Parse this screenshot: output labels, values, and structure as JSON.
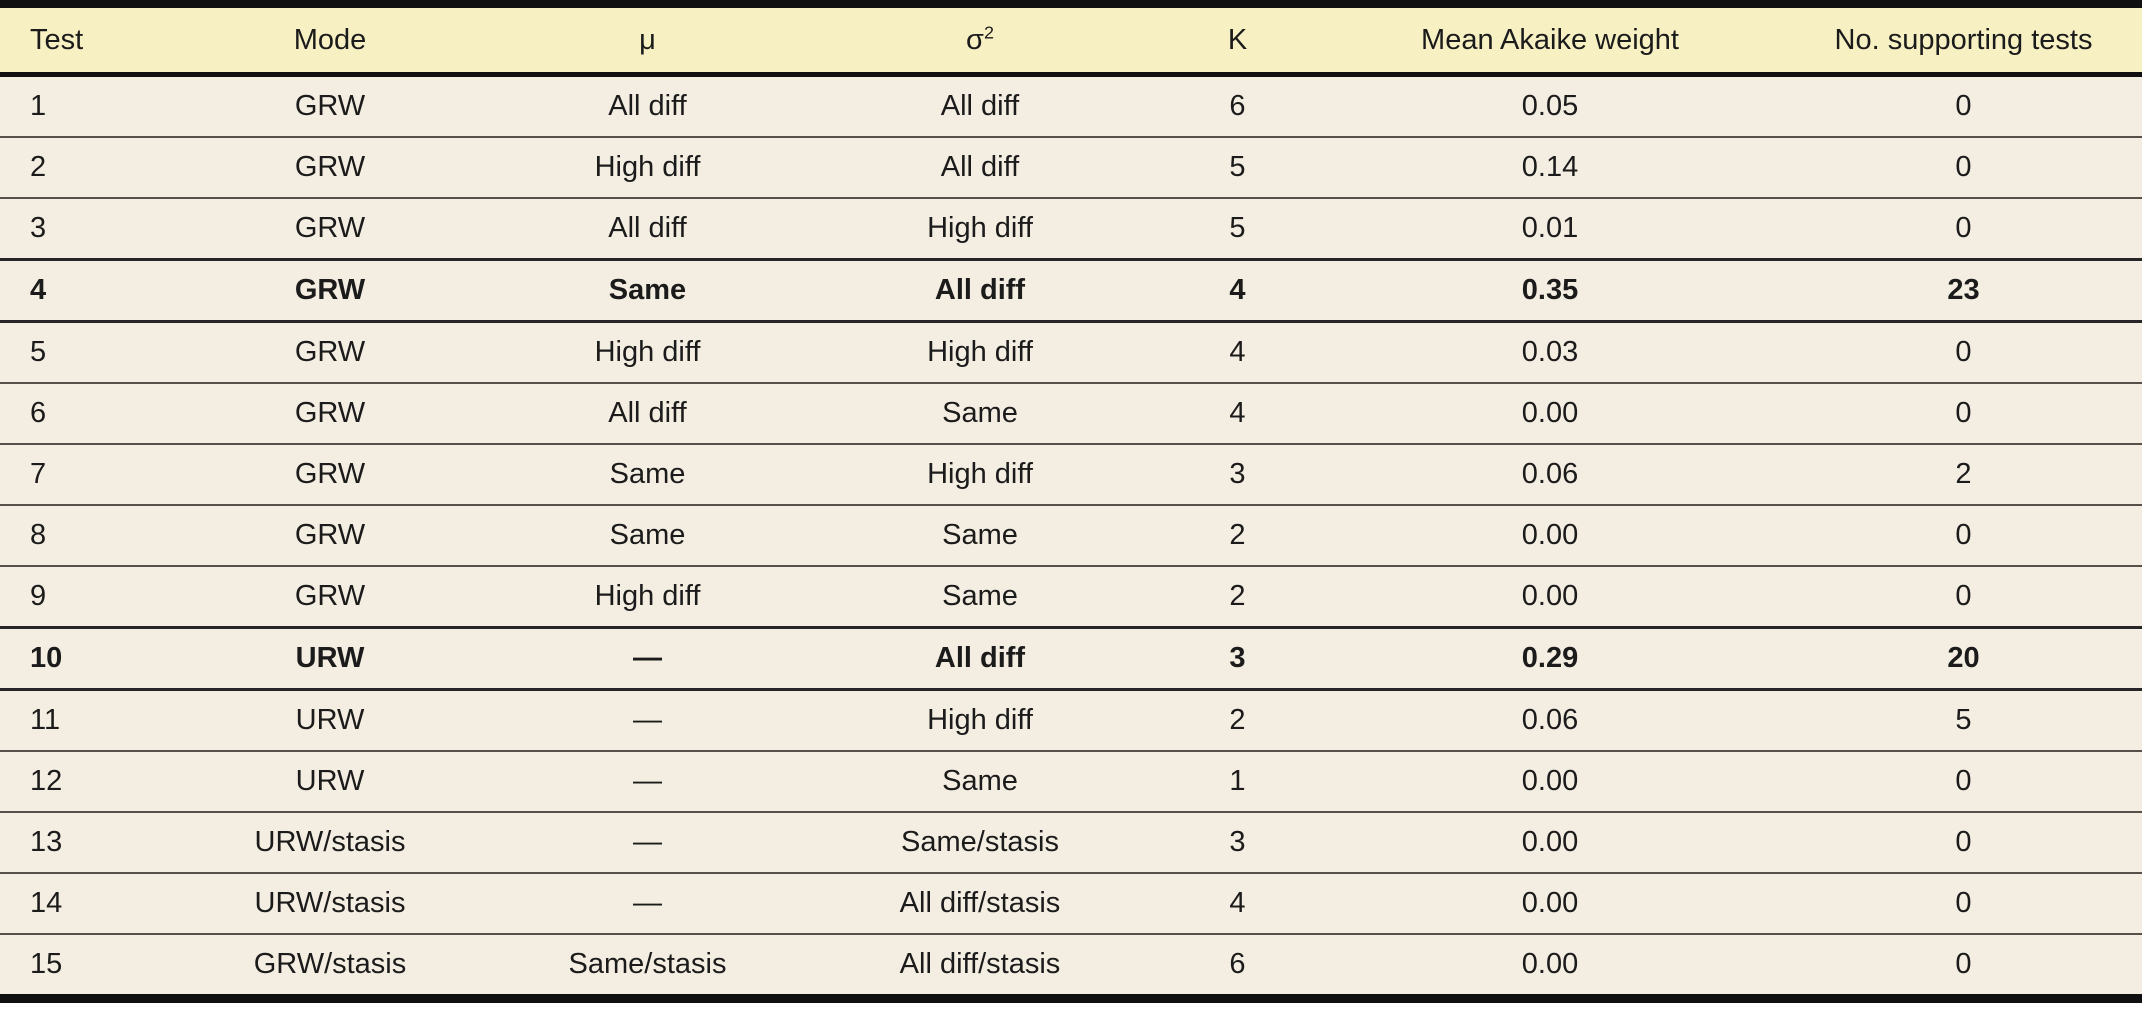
{
  "table": {
    "columns": [
      {
        "label": "Test",
        "sup": ""
      },
      {
        "label": "Mode",
        "sup": ""
      },
      {
        "label": "μ",
        "sup": ""
      },
      {
        "label": "σ",
        "sup": "2"
      },
      {
        "label": "K",
        "sup": ""
      },
      {
        "label": "Mean Akaike weight",
        "sup": ""
      },
      {
        "label": "No. supporting tests",
        "sup": ""
      }
    ],
    "rows": [
      {
        "test": "1",
        "mode": "GRW",
        "mu": "All diff",
        "sigma2": "All diff",
        "k": "6",
        "weight": "0.05",
        "supporting": "0",
        "bold": false
      },
      {
        "test": "2",
        "mode": "GRW",
        "mu": "High diff",
        "sigma2": "All diff",
        "k": "5",
        "weight": "0.14",
        "supporting": "0",
        "bold": false
      },
      {
        "test": "3",
        "mode": "GRW",
        "mu": "All diff",
        "sigma2": "High diff",
        "k": "5",
        "weight": "0.01",
        "supporting": "0",
        "bold": false
      },
      {
        "test": "4",
        "mode": "GRW",
        "mu": "Same",
        "sigma2": "All diff",
        "k": "4",
        "weight": "0.35",
        "supporting": "23",
        "bold": true
      },
      {
        "test": "5",
        "mode": "GRW",
        "mu": "High diff",
        "sigma2": "High diff",
        "k": "4",
        "weight": "0.03",
        "supporting": "0",
        "bold": false
      },
      {
        "test": "6",
        "mode": "GRW",
        "mu": "All diff",
        "sigma2": "Same",
        "k": "4",
        "weight": "0.00",
        "supporting": "0",
        "bold": false
      },
      {
        "test": "7",
        "mode": "GRW",
        "mu": "Same",
        "sigma2": "High diff",
        "k": "3",
        "weight": "0.06",
        "supporting": "2",
        "bold": false
      },
      {
        "test": "8",
        "mode": "GRW",
        "mu": "Same",
        "sigma2": "Same",
        "k": "2",
        "weight": "0.00",
        "supporting": "0",
        "bold": false
      },
      {
        "test": "9",
        "mode": "GRW",
        "mu": "High diff",
        "sigma2": "Same",
        "k": "2",
        "weight": "0.00",
        "supporting": "0",
        "bold": false
      },
      {
        "test": "10",
        "mode": "URW",
        "mu": "—",
        "sigma2": "All diff",
        "k": "3",
        "weight": "0.29",
        "supporting": "20",
        "bold": true
      },
      {
        "test": "11",
        "mode": "URW",
        "mu": "—",
        "sigma2": "High diff",
        "k": "2",
        "weight": "0.06",
        "supporting": "5",
        "bold": false
      },
      {
        "test": "12",
        "mode": "URW",
        "mu": "—",
        "sigma2": "Same",
        "k": "1",
        "weight": "0.00",
        "supporting": "0",
        "bold": false
      },
      {
        "test": "13",
        "mode": "URW/stasis",
        "mu": "—",
        "sigma2": "Same/stasis",
        "k": "3",
        "weight": "0.00",
        "supporting": "0",
        "bold": false
      },
      {
        "test": "14",
        "mode": "URW/stasis",
        "mu": "—",
        "sigma2": "All diff/stasis",
        "k": "4",
        "weight": "0.00",
        "supporting": "0",
        "bold": false
      },
      {
        "test": "15",
        "mode": "GRW/stasis",
        "mu": "Same/stasis",
        "sigma2": "All diff/stasis",
        "k": "6",
        "weight": "0.00",
        "supporting": "0",
        "bold": false
      }
    ]
  },
  "colors": {
    "header_background": "#f7f0c3",
    "row_background": "#f4ede1",
    "text": "#1b1b1b",
    "heavy_rule": "#101010",
    "row_rule": "#55504a"
  }
}
